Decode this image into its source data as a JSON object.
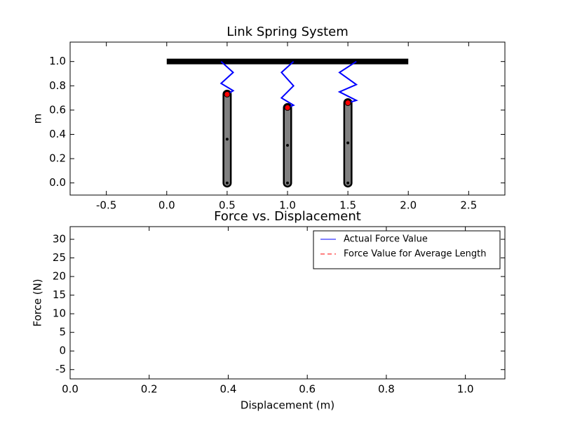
{
  "chart_data": [
    {
      "type": "line",
      "title": "Link Spring System",
      "ylabel": "m",
      "xlim": [
        -0.8,
        2.8
      ],
      "xticks": [
        -0.5,
        {
          "value": 0,
          "label": "0.0"
        },
        0.5,
        {
          "value": 1,
          "label": "1.0"
        },
        1.5,
        {
          "value": 2,
          "label": "2.0"
        },
        2.5
      ],
      "ylim": [
        -0.1,
        1.16
      ],
      "yticks": [
        {
          "value": 0,
          "label": "0.0"
        },
        0.2,
        0.4,
        0.6,
        0.8,
        {
          "value": 1,
          "label": "1.0"
        }
      ],
      "series": [
        {
          "color": "#000000",
          "linewidth": 8,
          "x": [
            0,
            2
          ],
          "values": [
            1,
            1
          ]
        },
        {
          "color": "#808080",
          "edgecolor": "#000000",
          "linewidth": 8,
          "marker": "o",
          "markersize": 2,
          "markercolor": "#000000",
          "x": [
            0.5,
            0.5,
            0.5
          ],
          "values": [
            0,
            0.36,
            0.73
          ]
        },
        {
          "color": "#808080",
          "edgecolor": "#000000",
          "linewidth": 8,
          "marker": "o",
          "markersize": 2,
          "markercolor": "#000000",
          "x": [
            1,
            1,
            1
          ],
          "values": [
            0,
            0.31,
            0.62
          ]
        },
        {
          "color": "#808080",
          "edgecolor": "#000000",
          "linewidth": 8,
          "marker": "o",
          "markersize": 2,
          "markercolor": "#000000",
          "x": [
            1.5,
            1.5,
            1.5
          ],
          "values": [
            0,
            0.33,
            0.66
          ]
        },
        {
          "color": "#0000ff",
          "linewidth": 2,
          "x": [
            0.45,
            0.55,
            0.45,
            0.55,
            0.5
          ],
          "values": [
            1,
            0.91,
            0.82,
            0.76,
            0.73
          ]
        },
        {
          "color": "#0000ff",
          "linewidth": 2,
          "x": [
            1.05,
            0.95,
            1.05,
            0.95,
            1.05,
            1
          ],
          "values": [
            1,
            0.91,
            0.8,
            0.7,
            0.64,
            0.62
          ]
        },
        {
          "color": "#0000ff",
          "linewidth": 2,
          "x": [
            1.57,
            1.43,
            1.57,
            1.43,
            1.57,
            1.5
          ],
          "values": [
            1,
            0.91,
            0.81,
            0.75,
            0.68,
            0.66
          ]
        },
        {
          "color": "#ff0000",
          "linewidth": 0,
          "marker": "o",
          "markersize": 4,
          "markercolor": "#ff0000",
          "x": [
            0.5,
            1,
            1.5
          ],
          "values": [
            0.73,
            0.62,
            0.66
          ]
        }
      ]
    },
    {
      "type": "line",
      "title": "Force vs. Displacement",
      "xlabel": "Displacement (m)",
      "ylabel": "Force (N)",
      "xlim": [
        0,
        1.1
      ],
      "xticks": [
        {
          "value": 0,
          "label": "0.0"
        },
        0.2,
        0.4,
        0.6,
        0.8,
        {
          "value": 1,
          "label": "1.0"
        }
      ],
      "ylim": [
        -7.5,
        33.4
      ],
      "yticks": [
        -5,
        0,
        5,
        10,
        15,
        20,
        25,
        30
      ],
      "legend": "upper right",
      "series": [
        {
          "name": "Actual Force Value",
          "color": "#0000ff",
          "linewidth": 1,
          "linestyle": "-",
          "x": [
            0
          ],
          "values": [
            0
          ]
        },
        {
          "name": "Force Value for Average Length",
          "color": "#ff0000",
          "linewidth": 1,
          "linestyle": "--",
          "x": [
            0
          ],
          "values": [
            0
          ]
        }
      ]
    }
  ]
}
